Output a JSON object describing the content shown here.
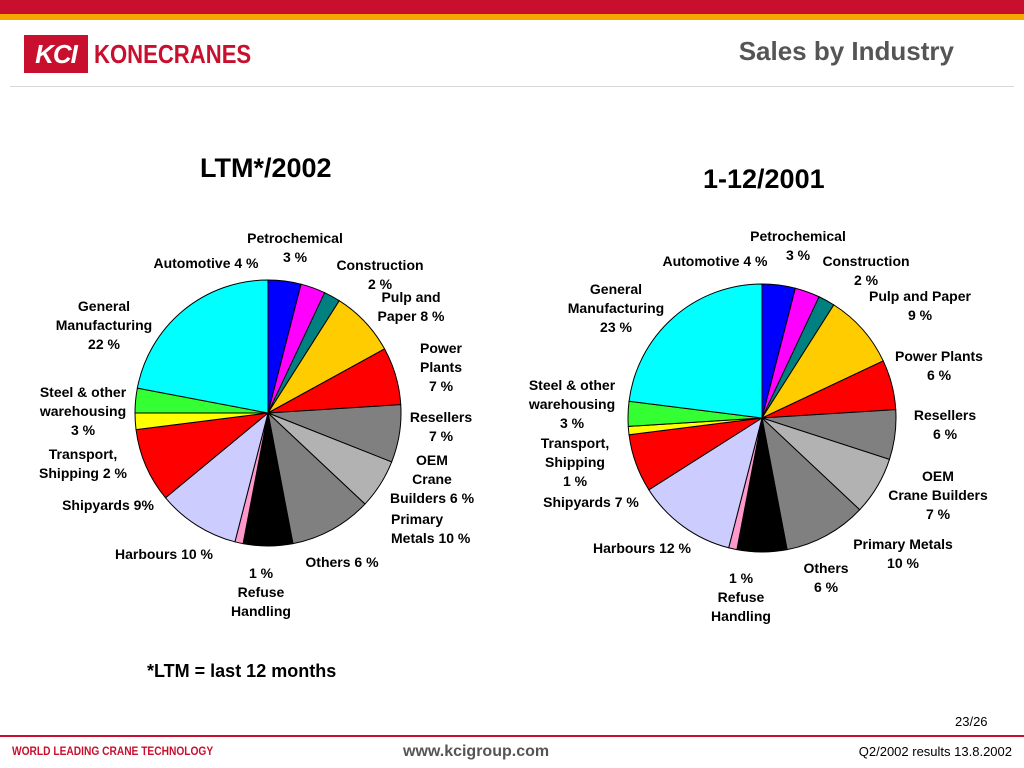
{
  "header": {
    "logo_mark": "KCI",
    "logo_text": "KONECRANES",
    "title": "Sales by Industry"
  },
  "chart_data": [
    {
      "type": "pie",
      "title": "LTM*/2002",
      "start_angle": 0,
      "slices": [
        {
          "label": "Automotive 4 %",
          "value": 4,
          "color": "#0000ff"
        },
        {
          "label": "Petrochemical 3 %",
          "value": 3,
          "color": "#ff00ff"
        },
        {
          "label": "Construction 2 %",
          "value": 2,
          "color": "#008080"
        },
        {
          "label": "Pulp and Paper 8 %",
          "value": 8,
          "color": "#ffcc00"
        },
        {
          "label": "Power Plants 7 %",
          "value": 7,
          "color": "#ff0000"
        },
        {
          "label": "Resellers 7 %",
          "value": 7,
          "color": "#808080"
        },
        {
          "label": "OEM Crane Builders 6 %",
          "value": 6,
          "color": "#b2b2b2"
        },
        {
          "label": "Primary Metals 10 %",
          "value": 10,
          "color": "#808080"
        },
        {
          "label": "Others 6 %",
          "value": 6,
          "color": "#000000"
        },
        {
          "label": "1 % Refuse Handling",
          "value": 1,
          "color": "#ff99cc"
        },
        {
          "label": "Harbours 10 %",
          "value": 10,
          "color": "#ccccff"
        },
        {
          "label": "Shipyards 9%",
          "value": 9,
          "color": "#ff0000"
        },
        {
          "label": "Transport, Shipping 2 %",
          "value": 2,
          "color": "#ffff00"
        },
        {
          "label": "Steel & other warehousing 3 %",
          "value": 3,
          "color": "#33ff33"
        },
        {
          "label": "General Manufacturing 22 %",
          "value": 22,
          "color": "#00ffff"
        }
      ]
    },
    {
      "type": "pie",
      "title": "1-12/2001",
      "start_angle": 0,
      "slices": [
        {
          "label": "Automotive 4 %",
          "value": 4,
          "color": "#0000ff"
        },
        {
          "label": "Petrochemical 3 %",
          "value": 3,
          "color": "#ff00ff"
        },
        {
          "label": "Construction 2 %",
          "value": 2,
          "color": "#008080"
        },
        {
          "label": "Pulp and Paper 9 %",
          "value": 9,
          "color": "#ffcc00"
        },
        {
          "label": "Power Plants 6 %",
          "value": 6,
          "color": "#ff0000"
        },
        {
          "label": "Resellers 6 %",
          "value": 6,
          "color": "#808080"
        },
        {
          "label": "OEM Crane Builders 7 %",
          "value": 7,
          "color": "#b2b2b2"
        },
        {
          "label": "Primary Metals 10 %",
          "value": 10,
          "color": "#808080"
        },
        {
          "label": "Others 6 %",
          "value": 6,
          "color": "#000000"
        },
        {
          "label": "1 % Refuse Handling",
          "value": 1,
          "color": "#ff99cc"
        },
        {
          "label": "Harbours 12 %",
          "value": 12,
          "color": "#ccccff"
        },
        {
          "label": "Shipyards 7 %",
          "value": 7,
          "color": "#ff0000"
        },
        {
          "label": "Transport, Shipping 1 %",
          "value": 1,
          "color": "#ffff00"
        },
        {
          "label": "Steel & other warehousing 3 %",
          "value": 3,
          "color": "#33ff33"
        },
        {
          "label": "General Manufacturing 23 %",
          "value": 23,
          "color": "#00ffff"
        }
      ]
    }
  ],
  "labels": {
    "left": {
      "automotive": "Automotive 4 %",
      "petrochemical": [
        "Petrochemical",
        "3 %"
      ],
      "construction": [
        "Construction",
        "2 %"
      ],
      "pulp": [
        "Pulp and",
        "Paper 8 %"
      ],
      "power": [
        "Power",
        "Plants",
        "7 %"
      ],
      "resellers": [
        "Resellers",
        "7 %"
      ],
      "oem": [
        "OEM",
        "Crane",
        "Builders 6 %"
      ],
      "primary": [
        "Primary",
        "Metals 10 %"
      ],
      "others": "Others 6 %",
      "refuse": [
        "1 %",
        "Refuse",
        "Handling"
      ],
      "harbours": "Harbours 10 %",
      "shipyards": "Shipyards 9%",
      "transport": [
        "Transport,",
        "Shipping 2 %"
      ],
      "steel": [
        "Steel & other",
        "warehousing",
        "3 %"
      ],
      "general": [
        "General",
        "Manufacturing",
        "22 %"
      ]
    },
    "right": {
      "automotive": "Automotive 4 %",
      "petrochemical": [
        "Petrochemical",
        "3 %"
      ],
      "construction": [
        "Construction",
        "2 %"
      ],
      "pulp": [
        "Pulp and Paper",
        "9 %"
      ],
      "power": [
        "Power Plants",
        "6 %"
      ],
      "resellers": [
        "Resellers",
        "6 %"
      ],
      "oem": [
        "OEM",
        "Crane Builders",
        "7 %"
      ],
      "primary": [
        "Primary Metals",
        "10 %"
      ],
      "others": [
        "Others",
        "6 %"
      ],
      "refuse": [
        "1 %",
        "Refuse",
        "Handling"
      ],
      "harbours": "Harbours 12 %",
      "shipyards": "Shipyards 7 %",
      "transport": [
        "Transport,",
        "Shipping",
        "1 %"
      ],
      "steel": [
        "Steel & other",
        "warehousing",
        "3 %"
      ],
      "general": [
        "General",
        "Manufacturing",
        "23 %"
      ]
    }
  },
  "footnote": "*LTM = last 12 months",
  "footer": {
    "page": "23/26",
    "tagline": "WORLD LEADING CRANE TECHNOLOGY",
    "website": "www.kcigroup.com",
    "results": "Q2/2002 results 13.8.2002"
  },
  "colors": {
    "brand_red": "#c8102e",
    "accent_orange": "#f5a800"
  }
}
